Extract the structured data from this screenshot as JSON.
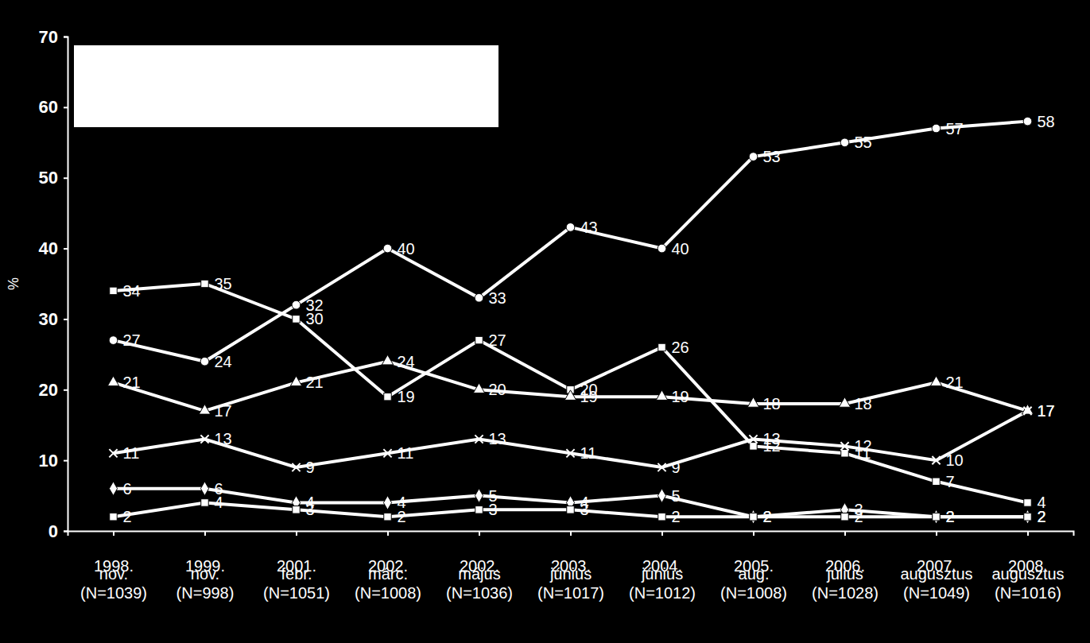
{
  "chart_data": {
    "type": "line",
    "y_label": "%",
    "categories": [
      "1998.\nnov.\n(N=1039)",
      "1999.\nnov.\n(N=998)",
      "2001.\nfebr.\n(N=1051)",
      "2002.\nmárc.\n(N=1008)",
      "2002.\nmájus\n(N=1036)",
      "2003.\njúnius\n(N=1017)",
      "2004.\njúnius\n(N=1012)",
      "2005.\naug.\n(N=1008)",
      "2006.\njúlius\n(N=1028)",
      "2007.\naugusztus\n(N=1049)",
      "2008.\naugusztus\n(N=1016)"
    ],
    "series": [
      {
        "color": "#ffffff",
        "marker": "circle",
        "values": [
          27,
          24,
          32,
          40,
          33,
          43,
          40,
          53,
          55,
          57,
          58
        ]
      },
      {
        "color": "#ffffff",
        "marker": "square",
        "values": [
          34,
          35,
          30,
          19,
          27,
          20,
          26,
          12,
          11,
          7,
          4
        ]
      },
      {
        "color": "#ffffff",
        "marker": "triangle",
        "values": [
          21,
          17,
          21,
          24,
          20,
          19,
          19,
          18,
          18,
          21,
          17
        ]
      },
      {
        "color": "#ffffff",
        "marker": "x",
        "values": [
          11,
          13,
          9,
          11,
          13,
          11,
          9,
          13,
          12,
          10,
          17
        ]
      },
      {
        "color": "#ffffff",
        "marker": "diamond",
        "values": [
          6,
          6,
          4,
          4,
          5,
          4,
          5,
          2,
          3,
          2,
          2
        ]
      },
      {
        "color": "#ffffff",
        "marker": "square",
        "values": [
          2,
          4,
          3,
          2,
          3,
          3,
          2,
          2,
          2,
          2,
          2
        ]
      }
    ],
    "ylim": [
      0,
      70
    ],
    "yticks": [
      0,
      10,
      20,
      30,
      40,
      50,
      60,
      70
    ],
    "grid": false,
    "data_labels": true
  }
}
